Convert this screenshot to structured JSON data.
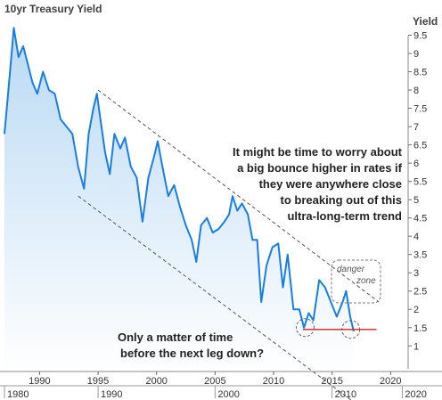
{
  "chart_data": {
    "type": "line",
    "title": "10yr Treasury Yield",
    "ylabel": "Yield",
    "ylim": [
      0.3,
      10.0
    ],
    "xlim": [
      1987.0,
      2021.5
    ],
    "y_ticks": [
      "9.5",
      "9",
      "8.5",
      "8",
      "7.5",
      "7",
      "6.5",
      "6",
      "5.5",
      "5",
      "4.5",
      "4",
      "3.5",
      "3",
      "2.5",
      "2",
      "1.5",
      "1"
    ],
    "x_ticks": [
      "1990",
      "1995",
      "2000",
      "2005",
      "2010",
      "2015",
      "2020"
    ],
    "x_ticks_secondary": [
      {
        "x": 1987,
        "label": "1980"
      },
      {
        "x": 1995,
        "label": "1990"
      },
      {
        "x": 2005,
        "label": "2000"
      },
      {
        "x": 2015,
        "label": "2010"
      },
      {
        "x": 2021,
        "label": "2020"
      }
    ],
    "series": [
      {
        "color": "#1a7de0",
        "x": [
          1987.0,
          1987.2,
          1987.5,
          1987.8,
          1988.2,
          1988.6,
          1989.0,
          1989.4,
          1989.8,
          1990.3,
          1990.8,
          1991.3,
          1991.8,
          1992.3,
          1992.8,
          1993.3,
          1993.8,
          1994.2,
          1994.6,
          1994.9,
          1995.2,
          1995.6,
          1996.0,
          1996.4,
          1996.9,
          1997.3,
          1997.8,
          1998.3,
          1998.8,
          1999.3,
          1999.8,
          2000.1,
          2000.5,
          2001.0,
          2001.5,
          2002.0,
          2002.5,
          2003.0,
          2003.4,
          2003.8,
          2004.3,
          2004.8,
          2005.3,
          2005.8,
          2006.2,
          2006.5,
          2006.9,
          2007.3,
          2007.8,
          2008.2,
          2008.6,
          2008.95,
          2009.4,
          2009.9,
          2010.4,
          2010.8,
          2011.2,
          2011.7,
          2012.2,
          2012.6,
          2013.0,
          2013.4,
          2013.9,
          2014.4,
          2014.9,
          2015.4,
          2015.9,
          2016.2,
          2016.55,
          2016.85
        ],
        "y": [
          6.8,
          7.5,
          8.6,
          9.7,
          8.9,
          9.2,
          8.7,
          8.2,
          7.9,
          8.5,
          8.0,
          7.9,
          7.2,
          7.0,
          6.8,
          5.9,
          5.3,
          6.8,
          7.5,
          7.9,
          7.2,
          6.3,
          5.7,
          6.8,
          6.4,
          6.7,
          5.9,
          5.6,
          4.4,
          5.6,
          6.2,
          6.6,
          5.9,
          5.1,
          5.4,
          4.8,
          4.3,
          3.9,
          3.3,
          4.3,
          4.5,
          4.1,
          4.2,
          4.4,
          4.6,
          5.1,
          4.7,
          4.9,
          4.6,
          3.9,
          3.9,
          2.2,
          3.2,
          3.7,
          3.8,
          2.6,
          3.5,
          2.0,
          2.0,
          1.5,
          1.9,
          1.7,
          2.8,
          2.6,
          2.2,
          1.8,
          2.2,
          2.5,
          1.8,
          1.4
        ]
      }
    ],
    "channel": {
      "upper": {
        "x": [
          1995,
          2019
        ],
        "y": [
          8.0,
          2.2
        ]
      },
      "lower": {
        "x": [
          1993.3,
          2016.7
        ],
        "y": [
          5.1,
          -0.5
        ]
      }
    },
    "support_line": {
      "x": [
        2012.5,
        2018.8
      ],
      "y": 1.45
    },
    "circles": [
      {
        "x": 2012.7,
        "y": 1.5
      },
      {
        "x": 2016.6,
        "y": 1.45
      }
    ],
    "annotations": {
      "top": [
        "It might be time to worry about",
        "a big bounce higher in rates if",
        "they were anywhere close",
        "to breaking out of this",
        "ultra-long-term trend"
      ],
      "bottom": [
        "Only a matter of time",
        "before the next leg down?"
      ],
      "danger_zone": [
        "danger",
        "zone"
      ]
    },
    "colors": {
      "line": "#1a7de0",
      "fill_top": "#b9d9f4",
      "channel": "#555555",
      "support": "#d02020"
    },
    "grid": false,
    "legend": "none"
  }
}
